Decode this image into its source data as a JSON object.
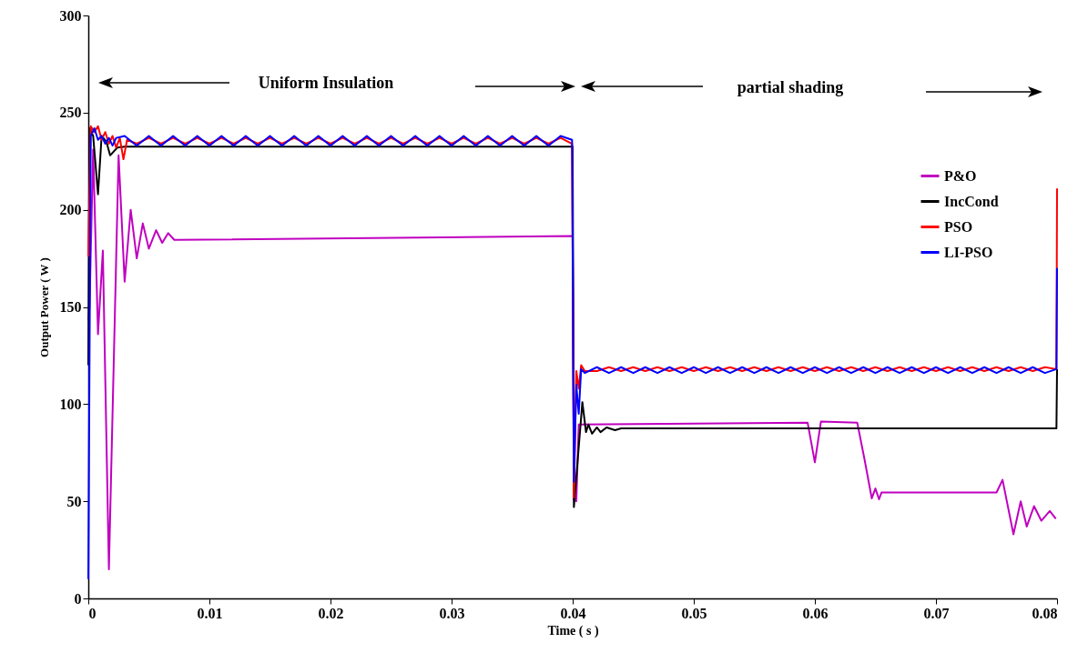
{
  "chart_data": {
    "type": "line",
    "xlabel": "Time ( s )",
    "ylabel": "Output Power ( W )",
    "xlim": [
      0,
      0.08
    ],
    "xticks": [
      0,
      0.01,
      0.02,
      0.03,
      0.04,
      0.05,
      0.06,
      0.07,
      0.08
    ],
    "ylim": [
      0,
      300
    ],
    "yticks": [
      0,
      50,
      100,
      150,
      200,
      250,
      300
    ],
    "grid": false,
    "legend": "top right",
    "marker": "none",
    "line_style": "solid",
    "annotations": [
      "Uniform Insulation",
      "partial shading"
    ],
    "series": [
      {
        "name": "P&O",
        "color": "#c000c0",
        "x": [
          0,
          0.0001,
          0.0004,
          0.0008,
          0.0012,
          0.0017,
          0.0025,
          0.003,
          0.0035,
          0.004,
          0.0045,
          0.005,
          0.0056,
          0.0061,
          0.0066,
          0.0071,
          0.04,
          0.0401,
          0.0403,
          0.0405,
          0.0594,
          0.06,
          0.0605,
          0.0635,
          0.0641,
          0.0647,
          0.065,
          0.0653,
          0.0655,
          0.075,
          0.0755,
          0.0764,
          0.077,
          0.0775,
          0.0781,
          0.0787,
          0.0794,
          0.0799
        ],
        "values": [
          143,
          150,
          231,
          136,
          179,
          15,
          228,
          163,
          200,
          175,
          193,
          180,
          189.5,
          183,
          188,
          184.5,
          186.5,
          50.5,
          50,
          89.5,
          90.5,
          70,
          91,
          90.5,
          71.6,
          51.5,
          56.6,
          51,
          54.5,
          54.5,
          61,
          33,
          50,
          37,
          47.5,
          40,
          45,
          41
        ]
      },
      {
        "name": "IncCond",
        "color": "#000000",
        "x": [
          0,
          0.0001,
          0.0004,
          0.0008,
          0.0011,
          0.0015,
          0.0018,
          0.0024,
          0.003,
          0.04,
          0.0401,
          0.0408,
          0.0411,
          0.0413,
          0.0416,
          0.042,
          0.0423,
          0.0428,
          0.0435,
          0.044,
          0.07995,
          0.08
        ],
        "values": [
          120,
          242,
          238,
          208,
          238,
          235,
          228,
          232,
          232.5,
          232.5,
          47,
          101,
          85.6,
          89.5,
          84.8,
          88,
          85.6,
          88,
          86.6,
          87.5,
          87.5,
          118
        ]
      },
      {
        "name": "PSO",
        "color": "#ff0000",
        "x": [
          0,
          0.0002,
          0.0005,
          0.0008,
          0.0011,
          0.0014,
          0.0017,
          0.002,
          0.0023,
          0.0026,
          0.0029,
          0.0032,
          0.004,
          0.005,
          0.006,
          0.007,
          0.008,
          0.009,
          0.01,
          0.011,
          0.012,
          0.013,
          0.014,
          0.015,
          0.016,
          0.017,
          0.018,
          0.019,
          0.02,
          0.021,
          0.022,
          0.023,
          0.024,
          0.025,
          0.026,
          0.027,
          0.028,
          0.029,
          0.03,
          0.031,
          0.032,
          0.033,
          0.034,
          0.035,
          0.036,
          0.037,
          0.038,
          0.039,
          0.03995,
          0.0401,
          0.0403,
          0.0405,
          0.0407,
          0.041,
          0.042,
          0.043,
          0.044,
          0.045,
          0.046,
          0.047,
          0.048,
          0.049,
          0.05,
          0.051,
          0.052,
          0.053,
          0.054,
          0.055,
          0.056,
          0.057,
          0.058,
          0.059,
          0.06,
          0.061,
          0.062,
          0.063,
          0.064,
          0.065,
          0.066,
          0.067,
          0.068,
          0.069,
          0.07,
          0.071,
          0.072,
          0.073,
          0.074,
          0.075,
          0.076,
          0.077,
          0.078,
          0.079,
          0.07995,
          0.08
        ],
        "values": [
          176,
          243,
          240,
          243,
          236,
          240,
          234,
          238,
          232,
          237,
          226,
          236,
          234,
          237,
          234,
          237,
          234,
          237,
          234,
          237,
          234,
          237,
          234,
          237,
          234,
          237,
          234,
          237,
          234,
          237,
          234,
          237,
          234,
          237,
          234,
          237,
          234,
          237,
          234,
          237,
          234,
          237,
          234,
          237,
          234,
          237,
          234,
          237,
          234,
          52,
          117,
          108,
          120,
          117,
          117,
          119,
          117,
          119,
          117,
          119,
          117,
          119,
          117,
          119,
          117,
          119,
          117,
          119,
          117,
          119,
          117,
          119,
          117,
          119,
          117,
          119,
          117,
          119,
          117,
          119,
          117,
          119,
          117,
          119,
          117,
          119,
          117,
          119,
          117,
          119,
          117,
          119,
          118,
          211
        ]
      },
      {
        "name": "LI-PSO",
        "color": "#0000ff",
        "x": [
          0,
          0.0002,
          0.0005,
          0.0008,
          0.0011,
          0.0014,
          0.0017,
          0.002,
          0.0023,
          0.003,
          0.004,
          0.005,
          0.006,
          0.007,
          0.008,
          0.009,
          0.01,
          0.011,
          0.012,
          0.013,
          0.014,
          0.015,
          0.016,
          0.017,
          0.018,
          0.019,
          0.02,
          0.021,
          0.022,
          0.023,
          0.024,
          0.025,
          0.026,
          0.027,
          0.028,
          0.029,
          0.03,
          0.031,
          0.032,
          0.033,
          0.034,
          0.035,
          0.036,
          0.037,
          0.038,
          0.039,
          0.03995,
          0.0401,
          0.0403,
          0.0405,
          0.0407,
          0.041,
          0.042,
          0.043,
          0.044,
          0.045,
          0.046,
          0.047,
          0.048,
          0.049,
          0.05,
          0.051,
          0.052,
          0.053,
          0.054,
          0.055,
          0.056,
          0.057,
          0.058,
          0.059,
          0.06,
          0.061,
          0.062,
          0.063,
          0.064,
          0.065,
          0.066,
          0.067,
          0.068,
          0.069,
          0.07,
          0.071,
          0.072,
          0.073,
          0.074,
          0.075,
          0.076,
          0.077,
          0.078,
          0.079,
          0.07995,
          0.08
        ],
        "values": [
          10,
          238,
          242,
          236,
          238,
          234,
          237,
          233,
          237,
          238,
          233,
          238,
          233,
          238,
          233,
          238,
          233,
          238,
          233,
          238,
          233,
          238,
          233,
          238,
          233,
          238,
          233,
          238,
          233,
          238,
          233,
          238,
          233,
          238,
          233,
          238,
          233,
          238,
          233,
          238,
          233,
          238,
          233,
          238,
          233,
          238,
          236,
          60,
          110,
          95,
          118,
          116,
          119,
          116,
          119,
          116,
          119,
          116,
          119,
          116,
          119,
          116,
          119,
          116,
          119,
          116,
          119,
          116,
          119,
          116,
          119,
          116,
          119,
          116,
          119,
          116,
          119,
          116,
          119,
          116,
          119,
          116,
          119,
          116,
          119,
          116,
          119,
          116,
          119,
          116,
          118,
          170
        ]
      }
    ]
  }
}
